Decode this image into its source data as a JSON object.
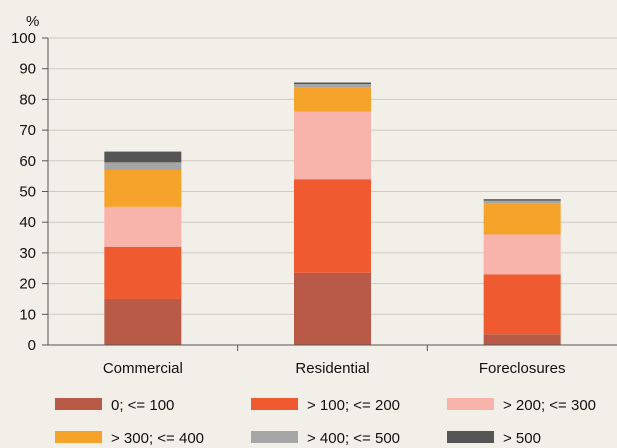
{
  "chart_data": {
    "type": "bar",
    "stacked": true,
    "ylabel": "%",
    "ylim": [
      0,
      100
    ],
    "yticks": [
      0,
      10,
      20,
      30,
      40,
      50,
      60,
      70,
      80,
      90,
      100
    ],
    "grid": true,
    "legend_position": "bottom",
    "categories": [
      "Commercial",
      "Residential",
      "Foreclosures"
    ],
    "series": [
      {
        "name": "0; <= 100",
        "color": "#b85a47",
        "values": [
          15,
          23.5,
          3.5
        ]
      },
      {
        "name": "> 100; <= 200",
        "color": "#f05a30",
        "values": [
          17,
          30.5,
          19.5
        ]
      },
      {
        "name": "> 200; <= 300",
        "color": "#f8b3ab",
        "values": [
          13,
          22,
          13
        ]
      },
      {
        "name": "> 300; <= 400",
        "color": "#f5a32a",
        "values": [
          12,
          8,
          10
        ]
      },
      {
        "name": "> 400; <= 500",
        "color": "#a6a6a6",
        "values": [
          2.5,
          1,
          1
        ]
      },
      {
        "name": "> 500",
        "color": "#555555",
        "values": [
          3.5,
          0.5,
          0.5
        ]
      }
    ]
  }
}
